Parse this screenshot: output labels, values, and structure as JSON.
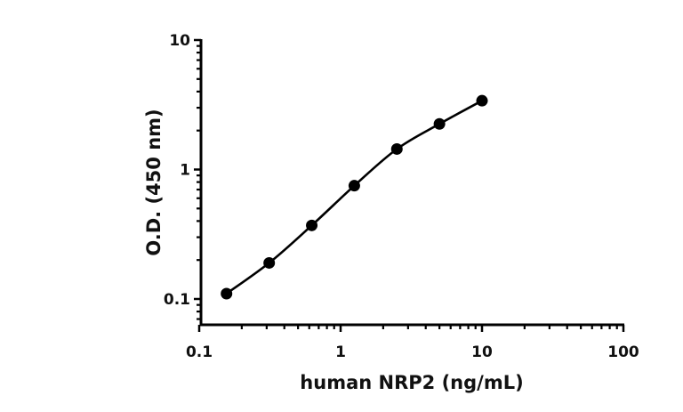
{
  "chart_data": {
    "type": "line",
    "title": "",
    "xlabel": "human NRP2 (ng/mL)",
    "ylabel": "O.D. (450 nm)",
    "xscale": "log",
    "yscale": "log",
    "xlim": [
      0.1,
      100
    ],
    "ylim": [
      0.063,
      10
    ],
    "xticks": [
      0.1,
      1,
      10,
      100
    ],
    "xtick_labels": [
      "0.1",
      "1",
      "10",
      "100"
    ],
    "yticks": [
      0.1,
      1,
      10
    ],
    "ytick_labels": [
      "0.1",
      "1",
      "10"
    ],
    "grid": false,
    "legend": null,
    "series": [
      {
        "name": "human NRP2",
        "marker": "circle",
        "color": "#000000",
        "fit": "smooth curve (4PL)",
        "x": [
          0.156,
          0.3125,
          0.625,
          1.25,
          2.5,
          5,
          10
        ],
        "y": [
          0.11,
          0.19,
          0.37,
          0.75,
          1.44,
          2.25,
          3.4
        ]
      }
    ]
  },
  "axes": {
    "x_title": "human NRP2 (ng/mL)",
    "y_title": "O.D. (450 nm)"
  }
}
